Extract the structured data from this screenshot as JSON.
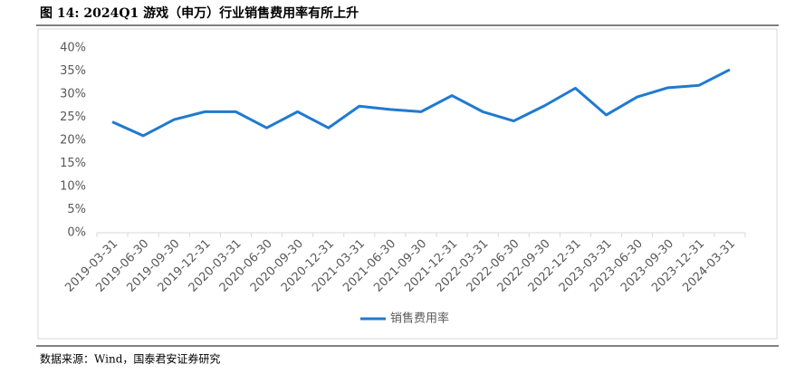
{
  "chart_data": {
    "type": "line",
    "title": "图 14:  2024Q1 游戏（申万）行业销售费用率有所上升",
    "source": "数据来源：Wind，国泰君安证券研究",
    "categories": [
      "2019-03-31",
      "2019-06-30",
      "2019-09-30",
      "2019-12-31",
      "2020-03-31",
      "2020-06-30",
      "2020-09-30",
      "2020-12-31",
      "2021-03-31",
      "2021-06-30",
      "2021-09-30",
      "2021-12-31",
      "2022-03-31",
      "2022-06-30",
      "2022-09-30",
      "2022-12-31",
      "2023-03-31",
      "2023-06-30",
      "2023-09-30",
      "2023-12-31",
      "2024-03-31"
    ],
    "series": [
      {
        "name": "销售费用率",
        "color": "#1f7ad1",
        "values": [
          24,
          21,
          24.5,
          26.2,
          26.2,
          22.7,
          26.2,
          22.7,
          27.4,
          26.7,
          26.2,
          29.7,
          26.2,
          24.2,
          27.5,
          31.3,
          25.5,
          29.4,
          31.4,
          31.9,
          35.3
        ]
      }
    ],
    "ylim": [
      0,
      40
    ],
    "yticks": [
      {
        "value": 0,
        "label": "0%"
      },
      {
        "value": 5,
        "label": "5%"
      },
      {
        "value": 10,
        "label": "10%"
      },
      {
        "value": 15,
        "label": "15%"
      },
      {
        "value": 20,
        "label": "20%"
      },
      {
        "value": 25,
        "label": "25%"
      },
      {
        "value": 30,
        "label": "30%"
      },
      {
        "value": 35,
        "label": "35%"
      },
      {
        "value": 40,
        "label": "40%"
      }
    ],
    "grid": false,
    "legend": "bottom"
  }
}
